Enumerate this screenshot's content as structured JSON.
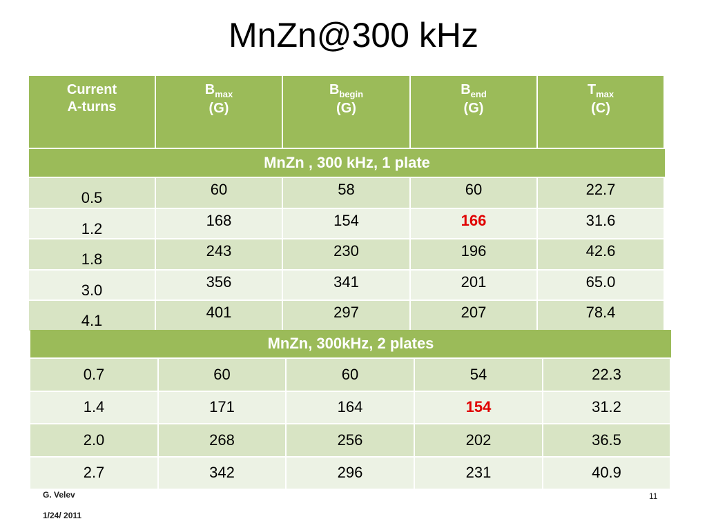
{
  "title": "MnZn@300 kHz",
  "header": [
    {
      "lines": [
        "Current",
        "A-turns"
      ]
    },
    {
      "symbol": "B",
      "sub": "max",
      "unit": "(G)"
    },
    {
      "symbol": "B",
      "sub": "begin",
      "unit": "(G)"
    },
    {
      "symbol": "B",
      "sub": "end",
      "unit": "(G)"
    },
    {
      "symbol": "T",
      "sub": "max",
      "unit": "(C)"
    }
  ],
  "highlight_color": "#e00000",
  "sections": [
    {
      "title": "MnZn , 300 kHz, 1 plate",
      "highlight_cell": [
        1,
        3
      ],
      "rows": [
        [
          "0.5",
          "60",
          "58",
          "60",
          "22.7"
        ],
        [
          "1.2",
          "168",
          "154",
          "166",
          "31.6"
        ],
        [
          "1.8",
          "243",
          "230",
          "196",
          "42.6"
        ],
        [
          "3.0",
          "356",
          "341",
          "201",
          "65.0"
        ],
        [
          "4.1",
          "401",
          "297",
          "207",
          "78.4"
        ]
      ]
    },
    {
      "title": "MnZn, 300kHz, 2 plates",
      "highlight_cell": [
        1,
        3
      ],
      "rows": [
        [
          "0.7",
          "60",
          "60",
          "54",
          "22.3"
        ],
        [
          "1.4",
          "171",
          "164",
          "154",
          "31.2"
        ],
        [
          "2.0",
          "268",
          "256",
          "202",
          "36.5"
        ],
        [
          "2.7",
          "342",
          "296",
          "231",
          "40.9"
        ]
      ]
    }
  ],
  "footer": {
    "author": "G. Velev",
    "date": "1/24/ 2011",
    "page": "11"
  }
}
